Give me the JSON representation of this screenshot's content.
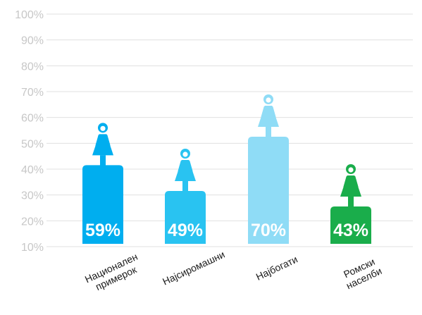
{
  "chart_data": {
    "type": "bar",
    "categories": [
      [
        "Национален",
        "примерок"
      ],
      [
        "Најсиромашни"
      ],
      [
        "Најбогати"
      ],
      [
        "Ромски",
        "населби"
      ]
    ],
    "values": [
      59,
      49,
      70,
      43
    ],
    "value_labels": [
      "59%",
      "49%",
      "70%",
      "43%"
    ],
    "colors": [
      "#00aeef",
      "#29c3f1",
      "#8fdcf6",
      "#1aad4b"
    ],
    "y_ticks": [
      "10%",
      "20%",
      "30%",
      "40%",
      "50%",
      "60%",
      "70%",
      "80%",
      "90%",
      "100%"
    ],
    "ylim": [
      10,
      100
    ],
    "grid": true,
    "marker_icon": "woman-figure-icon",
    "title": "",
    "xlabel": "",
    "ylabel": ""
  }
}
